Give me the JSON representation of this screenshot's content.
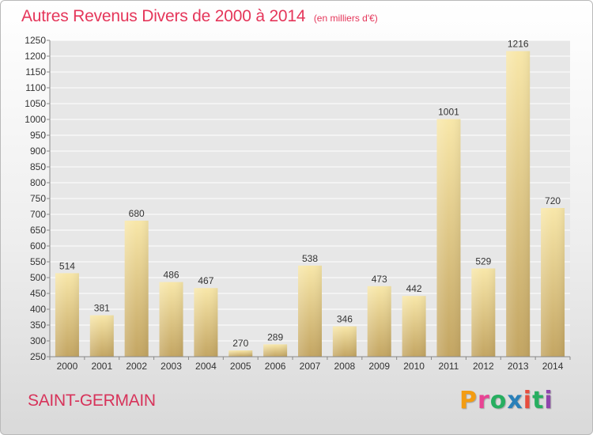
{
  "header": {
    "title": "Autres Revenus Divers de 2000 à 2014",
    "subtitle": "(en milliers d'€)"
  },
  "footer": {
    "commune": "SAINT-GERMAIN",
    "logo_text": "Proxiti",
    "logo_colors": [
      "#f39c12",
      "#e84393",
      "#27ae60",
      "#2980b9",
      "#e74c3c",
      "#27ae60",
      "#8e44ad"
    ]
  },
  "colors": {
    "title": "#e5365a",
    "bar_light": "#f7e6a8",
    "bar_dark": "#c4a663",
    "grid": "#ffffff"
  },
  "chart_data": {
    "type": "bar",
    "title": "Autres Revenus Divers de 2000 à 2014",
    "subtitle": "(en milliers d'€)",
    "categories": [
      "2000",
      "2001",
      "2002",
      "2003",
      "2004",
      "2005",
      "2006",
      "2007",
      "2008",
      "2009",
      "2010",
      "2011",
      "2012",
      "2013",
      "2014"
    ],
    "values": [
      514,
      381,
      680,
      486,
      467,
      270,
      289,
      538,
      346,
      473,
      442,
      1001,
      529,
      1216,
      720
    ],
    "ylim": [
      250,
      1250
    ],
    "ytick_step": 50,
    "yticks": [
      250,
      300,
      350,
      400,
      450,
      500,
      550,
      600,
      650,
      700,
      750,
      800,
      850,
      900,
      950,
      1000,
      1050,
      1100,
      1150,
      1200,
      1250
    ],
    "grid": true,
    "data_labels": true,
    "legend": "none"
  }
}
